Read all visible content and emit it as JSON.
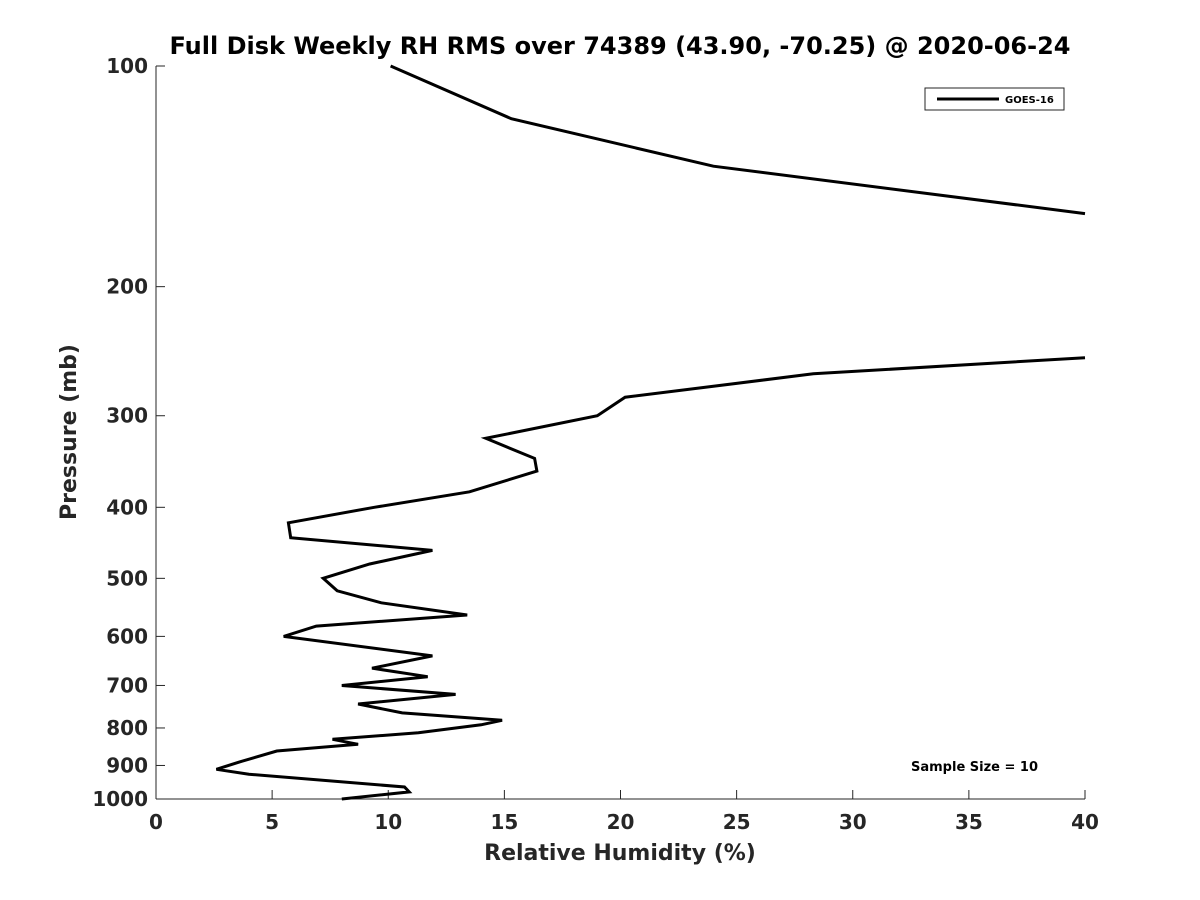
{
  "chart_data": {
    "type": "line",
    "title": "Full Disk Weekly RH RMS over 74389 (43.90, -70.25) @ 2020-06-24",
    "xlabel": "Relative Humidity (%)",
    "ylabel": "Pressure (mb)",
    "xlim": [
      0,
      40
    ],
    "ylim": [
      1000,
      100
    ],
    "yscale": "log",
    "grid": false,
    "legend_placement": "top-right",
    "x_ticks": [
      "0",
      "5",
      "10",
      "15",
      "20",
      "25",
      "30",
      "35",
      "40"
    ],
    "y_ticks": [
      "100",
      "200",
      "300",
      "400",
      "500",
      "600",
      "700",
      "800",
      "900",
      "1000"
    ],
    "annotation": "Sample Size = 10",
    "line_color": "#000000",
    "series": [
      {
        "name": "GOES-16",
        "segments": [
          [
            {
              "x": 10.1,
              "y": 100
            },
            {
              "x": 15.3,
              "y": 118
            },
            {
              "x": 24.0,
              "y": 137
            },
            {
              "x": 40.0,
              "y": 159
            }
          ],
          [
            {
              "x": 40.0,
              "y": 250
            },
            {
              "x": 28.3,
              "y": 263
            },
            {
              "x": 20.2,
              "y": 283
            },
            {
              "x": 19.0,
              "y": 300
            },
            {
              "x": 14.2,
              "y": 322
            },
            {
              "x": 16.3,
              "y": 343
            },
            {
              "x": 16.4,
              "y": 357
            },
            {
              "x": 13.5,
              "y": 381
            },
            {
              "x": 9.4,
              "y": 400
            },
            {
              "x": 5.7,
              "y": 420
            },
            {
              "x": 5.8,
              "y": 440
            },
            {
              "x": 11.9,
              "y": 458
            },
            {
              "x": 9.2,
              "y": 478
            },
            {
              "x": 7.2,
              "y": 500
            },
            {
              "x": 7.8,
              "y": 520
            },
            {
              "x": 9.7,
              "y": 540
            },
            {
              "x": 13.4,
              "y": 561
            },
            {
              "x": 6.9,
              "y": 581
            },
            {
              "x": 5.5,
              "y": 600
            },
            {
              "x": 11.9,
              "y": 638
            },
            {
              "x": 9.3,
              "y": 663
            },
            {
              "x": 11.7,
              "y": 681
            },
            {
              "x": 8.0,
              "y": 700
            },
            {
              "x": 12.9,
              "y": 720
            },
            {
              "x": 8.7,
              "y": 742
            },
            {
              "x": 10.6,
              "y": 763
            },
            {
              "x": 14.9,
              "y": 781
            },
            {
              "x": 14.0,
              "y": 792
            },
            {
              "x": 11.3,
              "y": 812
            },
            {
              "x": 7.6,
              "y": 829
            },
            {
              "x": 8.7,
              "y": 842
            },
            {
              "x": 5.2,
              "y": 860
            },
            {
              "x": 3.6,
              "y": 890
            },
            {
              "x": 2.6,
              "y": 911
            },
            {
              "x": 4.0,
              "y": 925
            },
            {
              "x": 10.7,
              "y": 963
            },
            {
              "x": 10.9,
              "y": 978
            },
            {
              "x": 8.0,
              "y": 1000
            }
          ]
        ]
      }
    ]
  }
}
